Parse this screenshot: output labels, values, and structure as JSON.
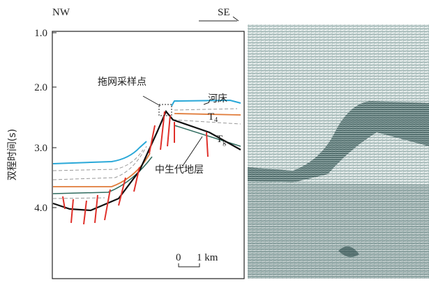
{
  "header": {
    "left": "NW",
    "right": "SE"
  },
  "axis": {
    "label": "双程时间(s)",
    "ticks": [
      "1.0",
      "2.0",
      "3.0",
      "4.0"
    ]
  },
  "annotations": {
    "sampling_point": "拖网采样点",
    "riverbed": "河床",
    "t4": {
      "main": "T",
      "sub": "4"
    },
    "tg": {
      "main": "T",
      "sub": "g"
    },
    "mesozoic": "中生代地层"
  },
  "scale_bar": {
    "zero": "0",
    "length": "1 km"
  }
}
